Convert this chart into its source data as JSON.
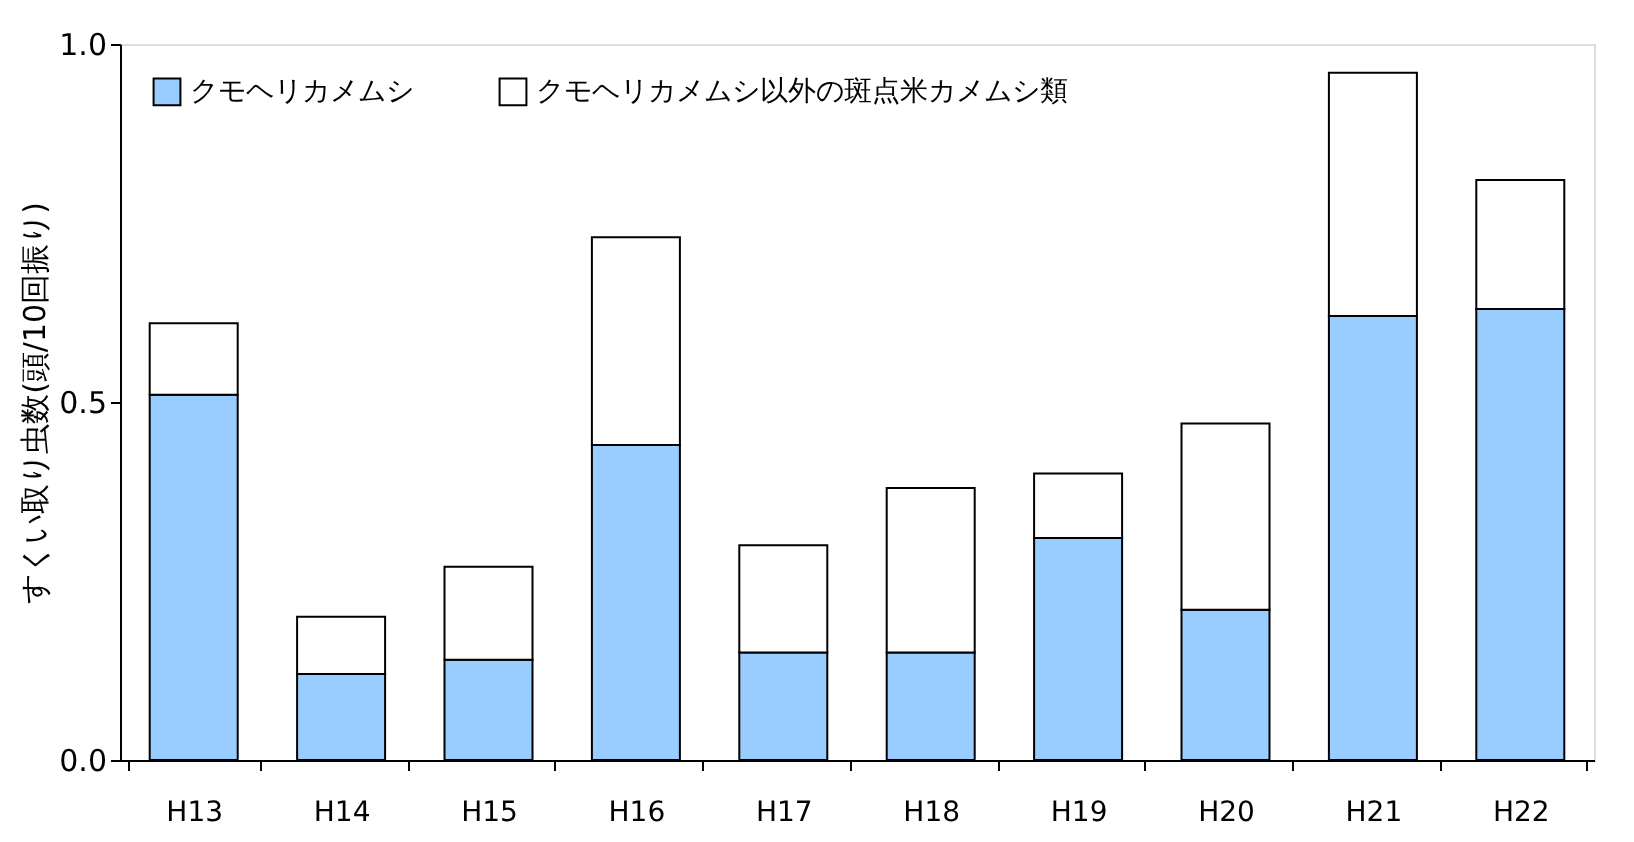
{
  "chart_data": {
    "type": "bar",
    "stacked": true,
    "ylabel": "すくい取り虫数(頭/10回振り)",
    "categories": [
      "H13",
      "H14",
      "H15",
      "H16",
      "H17",
      "H18",
      "H19",
      "H20",
      "H21",
      "H22"
    ],
    "series": [
      {
        "name": "クモヘリカメムシ",
        "color": "#99ccff",
        "values": [
          0.51,
          0.12,
          0.14,
          0.44,
          0.15,
          0.15,
          0.31,
          0.21,
          0.62,
          0.63
        ]
      },
      {
        "name": "クモヘリカメムシ以外の斑点米カメムシ類",
        "color": "#ffffff",
        "values": [
          0.1,
          0.08,
          0.13,
          0.29,
          0.15,
          0.23,
          0.09,
          0.26,
          0.34,
          0.18
        ]
      }
    ],
    "ylim": [
      0,
      1.0
    ],
    "yticks": [
      {
        "value": 0,
        "label": "0.0"
      },
      {
        "value": 0.5,
        "label": "0.5"
      },
      {
        "value": 1.0,
        "label": "1.0"
      }
    ],
    "grid": false,
    "legend": "top left"
  }
}
